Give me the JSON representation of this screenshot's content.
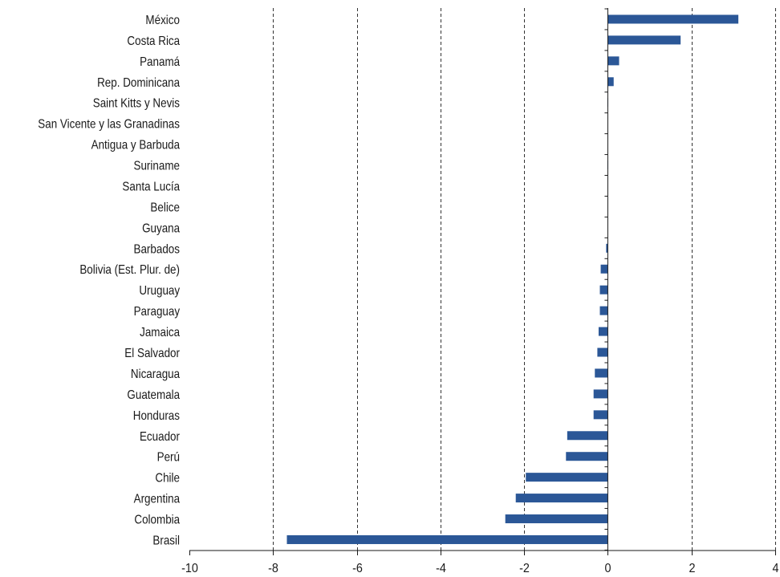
{
  "chart_data": {
    "type": "bar",
    "orientation": "horizontal",
    "title": "",
    "xlabel": "",
    "ylabel": "",
    "xlim": [
      -10,
      4
    ],
    "xticks": [
      -10,
      -8,
      -6,
      -4,
      -2,
      0,
      2,
      4
    ],
    "xtick_labels": [
      "-10",
      "-8",
      "-6",
      "-4",
      "-2",
      "0",
      "2",
      "4"
    ],
    "grid": "vertical dashed",
    "legend": "none",
    "bar_color": "#2b5797",
    "categories": [
      "México",
      "Costa Rica",
      "Panamá",
      "Rep. Dominicana",
      "Saint Kitts y Nevis",
      "San Vicente y las Granadinas",
      "Antigua y Barbuda",
      "Suriname",
      "Santa Lucía",
      "Belice",
      "Guyana",
      "Barbados",
      "Bolivia (Est. Plur. de)",
      "Uruguay",
      "Paraguay",
      "Jamaica",
      "El Salvador",
      "Nicaragua",
      "Guatemala",
      "Honduras",
      "Ecuador",
      "Perú",
      "Chile",
      "Argentina",
      "Colombia",
      "Brasil"
    ],
    "values": [
      3.12,
      1.74,
      0.27,
      0.14,
      0.01,
      0.0,
      0.0,
      0.01,
      0.0,
      0.0,
      0.0,
      -0.04,
      -0.17,
      -0.19,
      -0.19,
      -0.22,
      -0.25,
      -0.31,
      -0.34,
      -0.34,
      -0.97,
      -1.0,
      -1.96,
      -2.2,
      -2.45,
      -7.67
    ]
  }
}
